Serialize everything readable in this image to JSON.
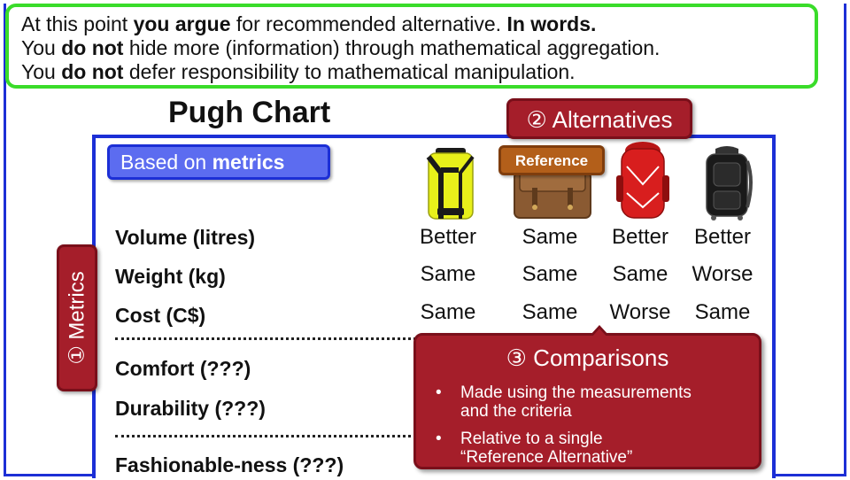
{
  "callout": {
    "line1": {
      "pre": "At this point ",
      "bold1": "you argue",
      "mid": " for recommended alternative. ",
      "bold2": "In words."
    },
    "line2": {
      "pre": "You ",
      "bold": "do not",
      "post": " hide more (information) through mathematical aggregation."
    },
    "line3": {
      "pre": "You ",
      "bold": "do not",
      "post": " defer responsibility to mathematical manipulation."
    }
  },
  "title": "Pugh Chart",
  "basis_badge": {
    "pre": "Based on ",
    "bold": "metrics"
  },
  "alternatives_label": "② Alternatives",
  "metrics_label": "① Metrics",
  "reference_tag": "Reference",
  "alternatives": [
    {
      "icon": "yellow-backpack-icon",
      "color": "#e8f01a"
    },
    {
      "icon": "brown-satchel-icon",
      "color": "#8a5a32"
    },
    {
      "icon": "red-backpack-icon",
      "color": "#d81e1e"
    },
    {
      "icon": "black-rolling-backpack-icon",
      "color": "#1a1a1a"
    }
  ],
  "metrics": [
    {
      "name": "Volume (litres)",
      "values": [
        "Better",
        "Same",
        "Better",
        "Better"
      ]
    },
    {
      "name": "Weight (kg)",
      "values": [
        "Same",
        "Same",
        "Same",
        "Worse"
      ]
    },
    {
      "name": "Cost (C$)",
      "values": [
        "Same",
        "Same",
        "Worse",
        "Same"
      ]
    },
    {
      "name": "Comfort (???)"
    },
    {
      "name": "Durability (???)"
    },
    {
      "name": "Fashionable-ness (???)"
    }
  ],
  "comparisons": {
    "title": "③ Comparisons",
    "bullets": [
      "Made using the measurements\nand the criteria",
      "Relative to a single\n“Reference Alternative”"
    ]
  },
  "colors": {
    "frame_blue": "#1c2fd6",
    "callout_green": "#3adc2a",
    "label_red": "#a51e2a",
    "reference_orange": "#b35f1a",
    "badge_blue": "#5c6cf0"
  }
}
